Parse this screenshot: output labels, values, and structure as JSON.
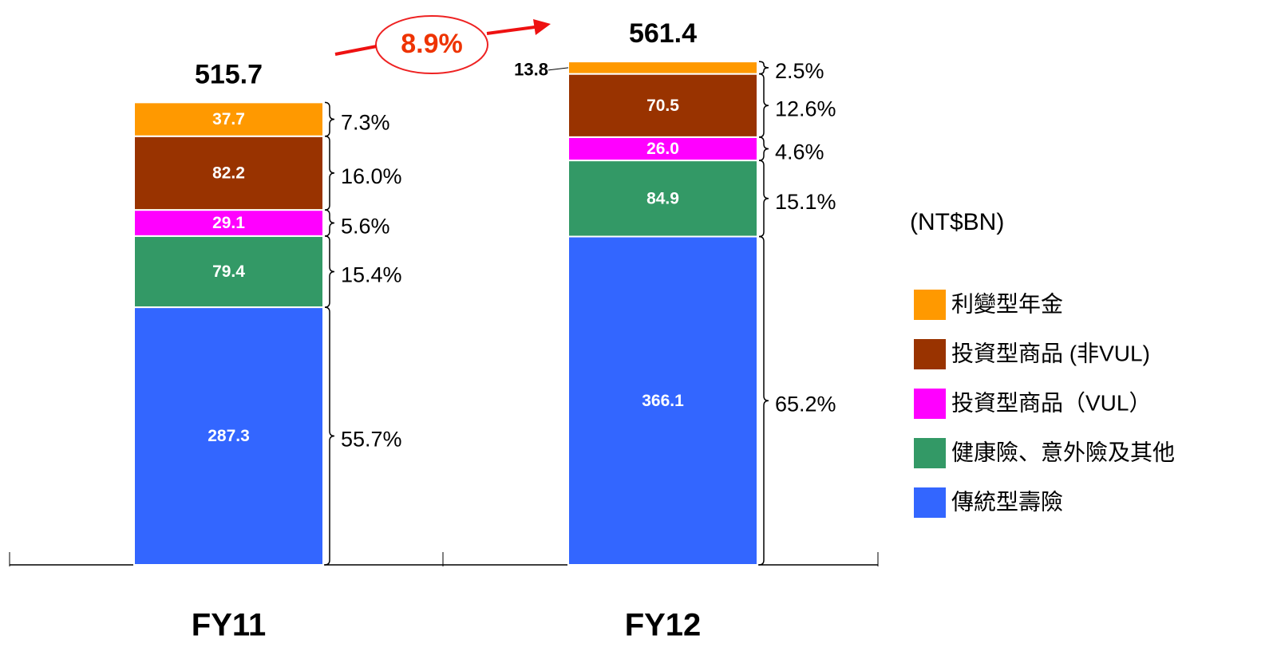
{
  "chart_data": {
    "type": "stacked_bar",
    "unit_label": "(NT$BN)",
    "categories": [
      "FY11",
      "FY12"
    ],
    "totals": [
      515.7,
      561.4
    ],
    "growth": 8.9,
    "growth_label": "8.9%",
    "series": [
      {
        "name": "傳統型壽險",
        "color": "#3366ff",
        "values": [
          287.3,
          366.1
        ],
        "shares": [
          55.7,
          65.2
        ],
        "share_labels": [
          "55.7%",
          "65.2%"
        ]
      },
      {
        "name": "健康險、意外險及其他",
        "color": "#339966",
        "values": [
          79.4,
          84.9
        ],
        "shares": [
          15.4,
          15.1
        ],
        "share_labels": [
          "15.4%",
          "15.1%"
        ]
      },
      {
        "name": "投資型商品（VUL）",
        "color": "#ff00ff",
        "values": [
          29.1,
          26.0
        ],
        "value_labels": [
          "29.1",
          "26.0"
        ],
        "shares": [
          5.6,
          4.6
        ],
        "share_labels": [
          "5.6%",
          "4.6%"
        ]
      },
      {
        "name": "投資型商品 (非VUL)",
        "color": "#993300",
        "values": [
          82.2,
          70.5
        ],
        "shares": [
          16.0,
          12.6
        ],
        "share_labels": [
          "16.0%",
          "12.6%"
        ]
      },
      {
        "name": "利變型年金",
        "color": "#ff9900",
        "values": [
          37.7,
          13.8
        ],
        "shares": [
          7.3,
          2.5
        ],
        "share_labels": [
          "7.3%",
          "2.5%"
        ]
      }
    ]
  }
}
